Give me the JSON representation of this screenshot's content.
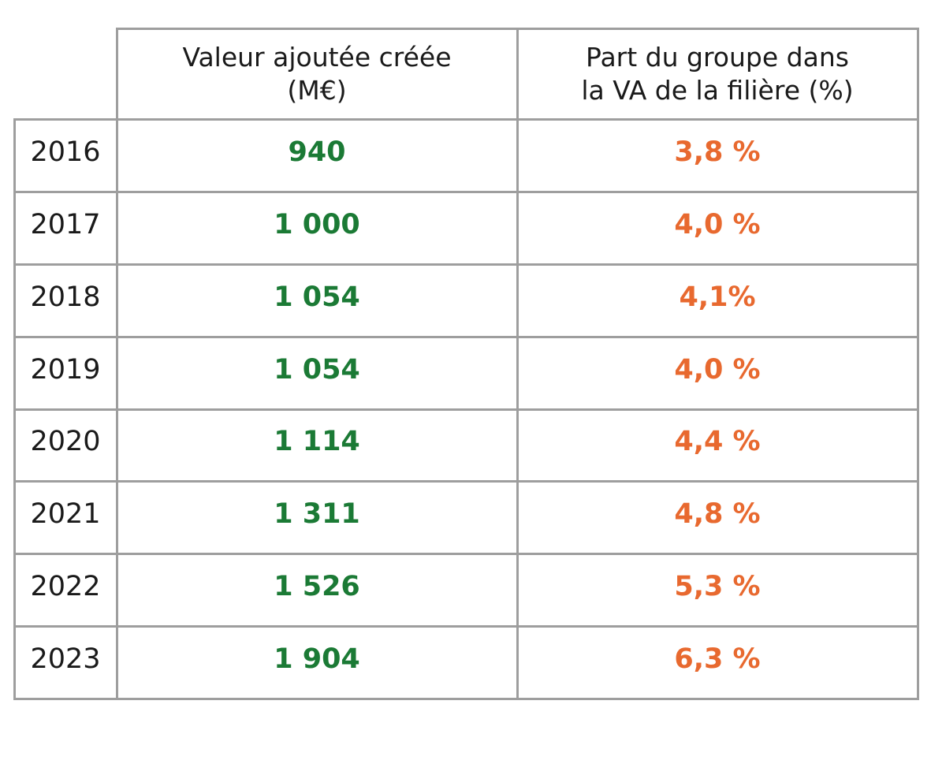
{
  "colors": {
    "value": "#1b7a35",
    "share": "#e8692f",
    "grid": "#9e9e9e"
  },
  "chart_data": {
    "type": "table",
    "columns": [
      "Valeur ajoutée créée\n(M€)",
      "Part du groupe dans\nla VA de la filière  (%)"
    ],
    "rows": [
      {
        "year": "2016",
        "value": "940",
        "share": "3,8 %"
      },
      {
        "year": "2017",
        "value": "1 000",
        "share": "4,0 %"
      },
      {
        "year": "2018",
        "value": "1 054",
        "share": "4,1%"
      },
      {
        "year": "2019",
        "value": "1 054",
        "share": "4,0 %"
      },
      {
        "year": "2020",
        "value": "1 114",
        "share": "4,4 %"
      },
      {
        "year": "2021",
        "value": "1 311",
        "share": "4,8 %"
      },
      {
        "year": "2022",
        "value": "1 526",
        "share": "5,3 %"
      },
      {
        "year": "2023",
        "value": "1 904",
        "share": "6,3 %"
      }
    ]
  }
}
